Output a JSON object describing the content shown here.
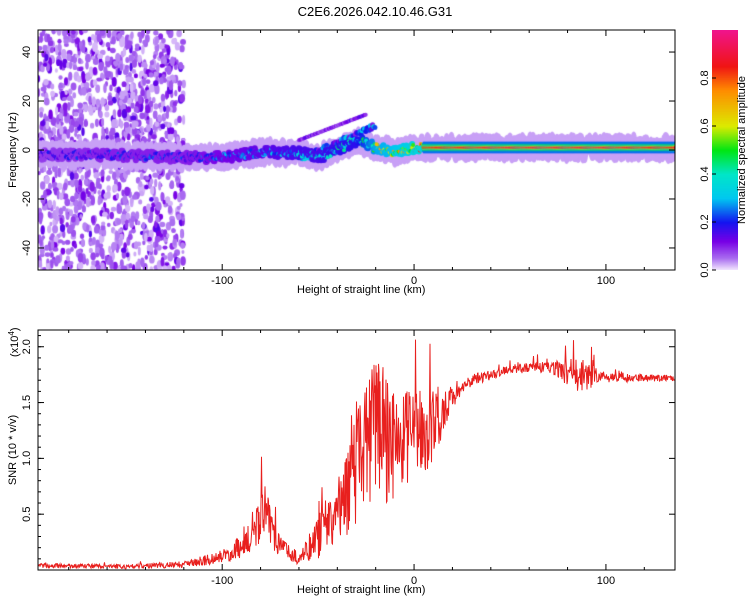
{
  "title": "C2E6.2026.042.10.46.G31",
  "chart_data": [
    {
      "type": "heatmap",
      "xlabel": "Height of straight line (km)",
      "ylabel": "Frequency (Hz)",
      "xlim": [
        -196,
        136
      ],
      "ylim": [
        -49,
        49
      ],
      "xticks": [
        -100,
        0,
        100
      ],
      "yticks": [
        -40,
        -20,
        0,
        20,
        40
      ],
      "colorbar": {
        "label": "Normalized spectral amplitude",
        "range": [
          0.0,
          1.0
        ],
        "ticks": [
          "0.0",
          "0.2",
          "0.4",
          "0.6",
          "0.8"
        ]
      },
      "ridge": {
        "x": [
          -196,
          -160,
          -120,
          -100,
          -80,
          -60,
          -50,
          -40,
          -30,
          -20,
          -10,
          0,
          10,
          50,
          100,
          136
        ],
        "freq": [
          -2,
          -2,
          -3,
          -3,
          -1,
          -1,
          -3,
          0,
          4,
          1,
          -1,
          1,
          1,
          1,
          1,
          1
        ],
        "amplitude": [
          0.2,
          0.25,
          0.25,
          0.3,
          0.35,
          0.4,
          0.4,
          0.45,
          0.45,
          0.7,
          0.75,
          0.85,
          0.9,
          0.95,
          0.95,
          0.9
        ]
      },
      "noise_region_x": [
        -196,
        -120
      ]
    },
    {
      "type": "line",
      "xlabel": "Height of straight line (km)",
      "ylabel": "SNR (10 * v/v)",
      "yscale_label": "(x10",
      "yscale_exp": "4",
      "xlim": [
        -196,
        136
      ],
      "ylim": [
        0,
        2.15
      ],
      "xticks": [
        -100,
        0,
        100
      ],
      "yticks": [
        0.5,
        1.0,
        1.5,
        2.0
      ],
      "ytick_labels": [
        "0.5",
        "1.0",
        "1.5",
        "2.0"
      ],
      "series": [
        {
          "name": "SNR",
          "color": "#e8201e",
          "x": [
            -196,
            -150,
            -120,
            -100,
            -85,
            -78,
            -70,
            -60,
            -50,
            -40,
            -30,
            -20,
            -15,
            -10,
            0,
            10,
            20,
            30,
            50,
            70,
            85,
            90,
            100,
            136
          ],
          "y": [
            0.04,
            0.03,
            0.05,
            0.12,
            0.25,
            0.55,
            0.2,
            0.1,
            0.3,
            0.5,
            0.9,
            1.3,
            1.2,
            1.1,
            1.2,
            1.3,
            1.55,
            1.7,
            1.8,
            1.82,
            1.75,
            1.75,
            1.72,
            1.72
          ],
          "noise": [
            0.02,
            0.02,
            0.03,
            0.06,
            0.12,
            0.25,
            0.1,
            0.05,
            0.2,
            0.3,
            0.5,
            0.6,
            0.6,
            0.5,
            0.4,
            0.35,
            0.1,
            0.05,
            0.04,
            0.05,
            0.15,
            0.15,
            0.04,
            0.03
          ]
        }
      ]
    }
  ]
}
